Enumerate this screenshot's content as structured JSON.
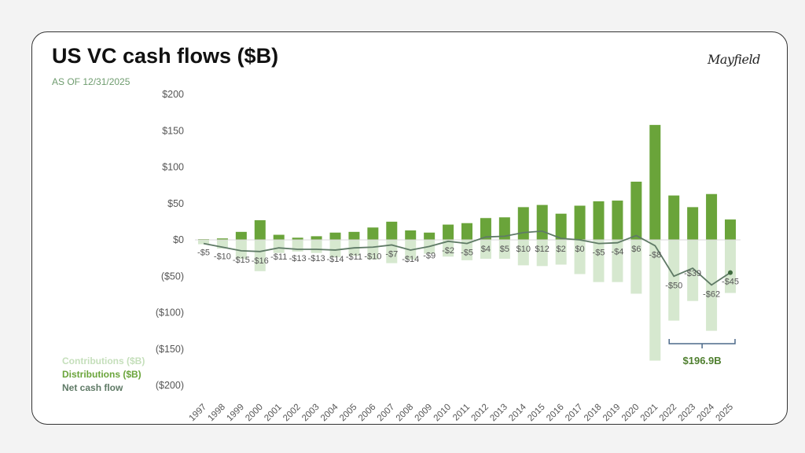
{
  "title": "US VC cash flows ($B)",
  "subtitle": "AS OF 12/31/2025",
  "logo_text": "Mayfield",
  "legend": [
    {
      "label": "Contributions ($B)",
      "color": "#c5dfbb"
    },
    {
      "label": "Distributions ($B)",
      "color": "#6aa43a"
    },
    {
      "label": "Net cash flow",
      "color": "#5f7a66"
    }
  ],
  "chart_data": {
    "type": "bar",
    "title": "US VC cash flows ($B)",
    "categories": [
      "1997",
      "1998",
      "1999",
      "2000",
      "2001",
      "2002",
      "2003",
      "2004",
      "2005",
      "2006",
      "2007",
      "2008",
      "2009",
      "2010",
      "2011",
      "2012",
      "2013",
      "2014",
      "2015",
      "2016",
      "2017",
      "2018",
      "2019",
      "2020",
      "2021",
      "2022",
      "2023",
      "2024",
      "2025"
    ],
    "series": [
      {
        "name": "Contributions ($B)",
        "type": "bar",
        "color": "#d6e8cf",
        "values": [
          -6,
          -12,
          -26,
          -43,
          -18,
          -16,
          -18,
          -24,
          -22,
          -27,
          -32,
          -27,
          -19,
          -23,
          -28,
          -26,
          -26,
          -35,
          -36,
          -34,
          -47,
          -58,
          -58,
          -74,
          -166,
          -111,
          -84,
          -125,
          -73
        ]
      },
      {
        "name": "Distributions ($B)",
        "type": "bar",
        "color": "#6aa43a",
        "values": [
          1,
          2,
          11,
          27,
          7,
          3,
          5,
          10,
          11,
          17,
          25,
          13,
          10,
          21,
          23,
          30,
          31,
          45,
          48,
          36,
          47,
          53,
          54,
          80,
          158,
          61,
          45,
          63,
          28
        ]
      },
      {
        "name": "Net cash flow",
        "type": "line",
        "color": "#5f7a66",
        "values": [
          -5,
          -10,
          -15,
          -16,
          -11,
          -13,
          -13,
          -14,
          -11,
          -10,
          -7,
          -14,
          -9,
          -2,
          -5,
          4,
          5,
          10,
          12,
          2,
          0,
          -5,
          -4,
          6,
          -8,
          -50,
          -39,
          -62,
          -45
        ]
      }
    ],
    "data_labels": [
      "-$5",
      "-$10",
      "-$15",
      "-$16",
      "-$11",
      "-$13",
      "-$13",
      "-$14",
      "-$11",
      "-$10",
      "-$7",
      "-$14",
      "-$9",
      "-$2",
      "-$5",
      "$4",
      "$5",
      "$10",
      "$12",
      "$2",
      "$0",
      "-$5",
      "-$4",
      "$6",
      "-$8",
      "-$50",
      "-$39",
      "-$62",
      "-$45"
    ],
    "yticks": [
      200,
      150,
      100,
      50,
      0,
      -50,
      -100,
      -150,
      -200
    ],
    "ytick_labels": [
      "$200",
      "$150",
      "$100",
      "$50",
      "$0",
      "($50)",
      "($100)",
      "($150)",
      "($200)"
    ],
    "ylim": [
      -200,
      200
    ],
    "grid": false,
    "legend_position": "bottom-left",
    "annotation": {
      "label": "$196.9B",
      "from": "2022",
      "to": "2025",
      "color": "#4f7f2f"
    }
  }
}
